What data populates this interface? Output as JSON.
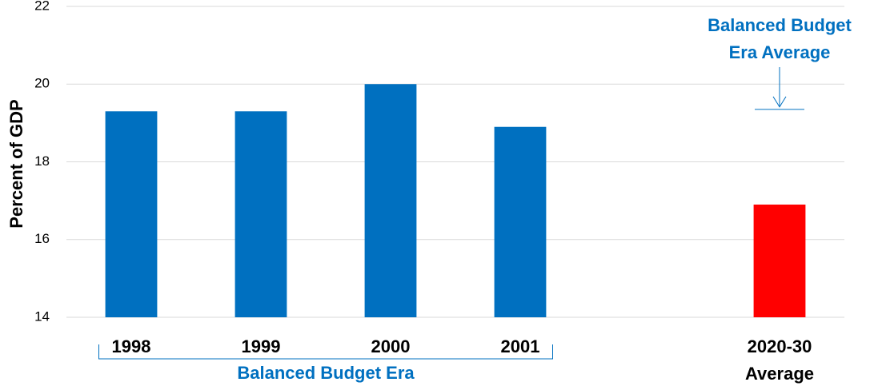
{
  "chart_data": {
    "type": "bar",
    "y_label": "Percent of GDP",
    "categories": [
      "1998",
      "1999",
      "2000",
      "2001",
      null,
      "2020-30 Average"
    ],
    "values": [
      19.3,
      19.3,
      20.0,
      18.9,
      null,
      16.9
    ],
    "colors": [
      "#0070c0",
      "#0070c0",
      "#0070c0",
      "#0070c0",
      null,
      "#ff0000"
    ],
    "ylim": [
      14,
      22
    ],
    "yticks": [
      14,
      16,
      18,
      20,
      22
    ],
    "grid": true,
    "group_label": "Balanced Budget Era",
    "reference_line": {
      "label": "Balanced Budget Era Average",
      "value": 19.35,
      "color": "#0070c0"
    }
  }
}
